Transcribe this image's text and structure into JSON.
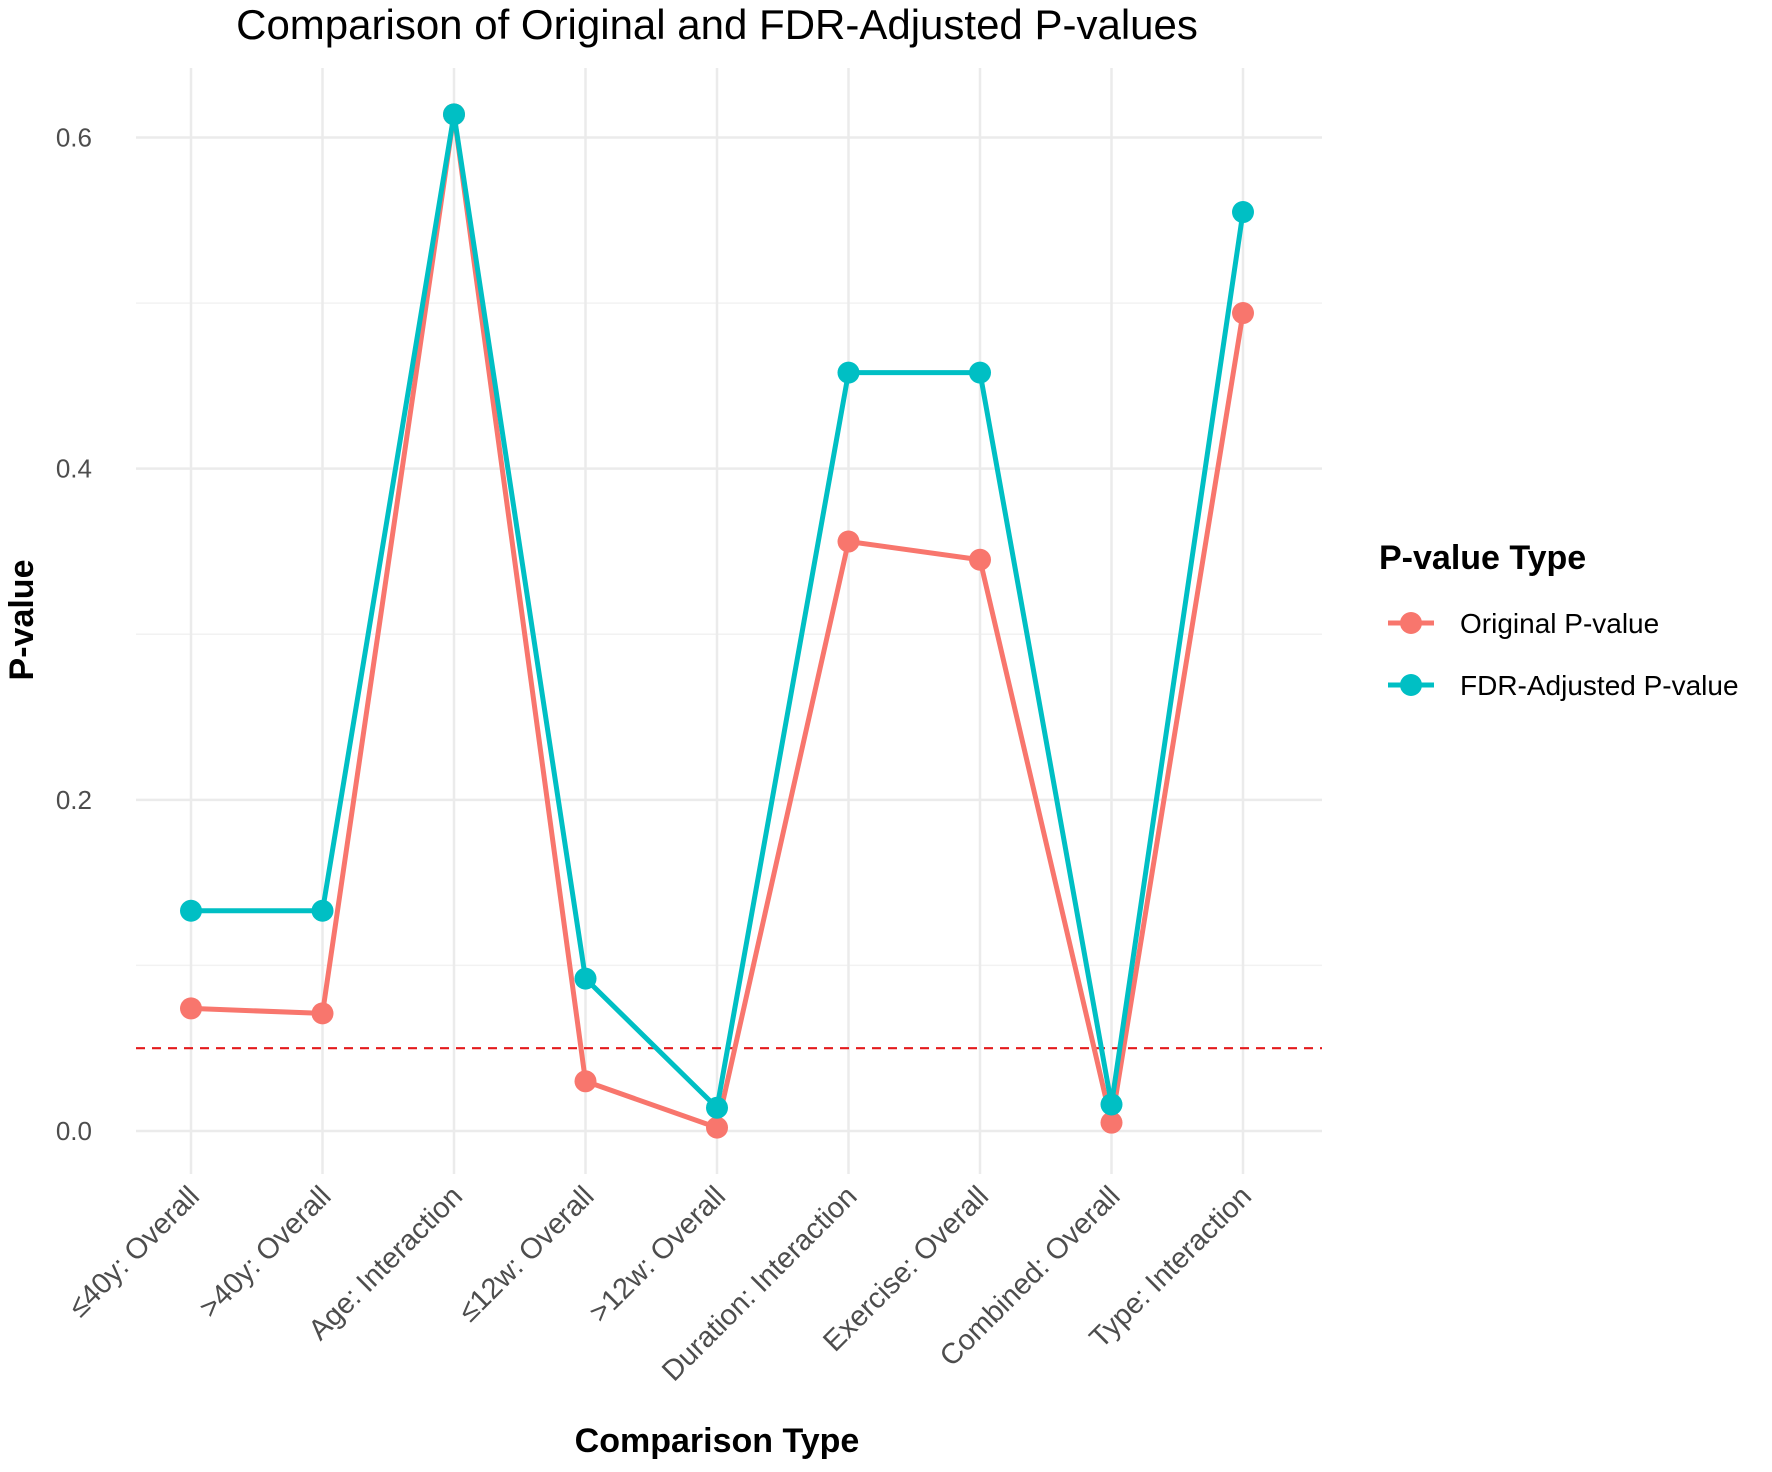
{
  "chart_data": {
    "type": "line",
    "title": "Comparison of Original and FDR-Adjusted P-values",
    "xlabel": "Comparison Type",
    "ylabel": "P-value",
    "categories": [
      "≤40y: Overall",
      ">40y: Overall",
      "Age: Interaction",
      "≤12w: Overall",
      ">12w: Overall",
      "Duration: Interaction",
      "Exercise: Overall",
      "Combined: Overall",
      "Type: Interaction"
    ],
    "series": [
      {
        "name": "Original P-value",
        "color": "#F8766D",
        "values": [
          0.074,
          0.071,
          0.614,
          0.03,
          0.002,
          0.356,
          0.345,
          0.005,
          0.494
        ]
      },
      {
        "name": "FDR-Adjusted P-value",
        "color": "#00BFC4",
        "values": [
          0.133,
          0.133,
          0.614,
          0.092,
          0.014,
          0.458,
          0.458,
          0.016,
          0.555
        ]
      }
    ],
    "ylim": [
      -0.026,
      0.642
    ],
    "y_ticks": [
      0.0,
      0.2,
      0.4,
      0.6
    ],
    "y_tick_labels": [
      "0.0",
      "0.2",
      "0.4",
      "0.6"
    ],
    "reference_line": {
      "y": 0.05,
      "style": "dashed",
      "color": "#E41A1C"
    },
    "legend": {
      "title": "P-value Type",
      "position": "right",
      "entries": [
        "Original P-value",
        "FDR-Adjusted P-value"
      ]
    },
    "grid": true
  }
}
